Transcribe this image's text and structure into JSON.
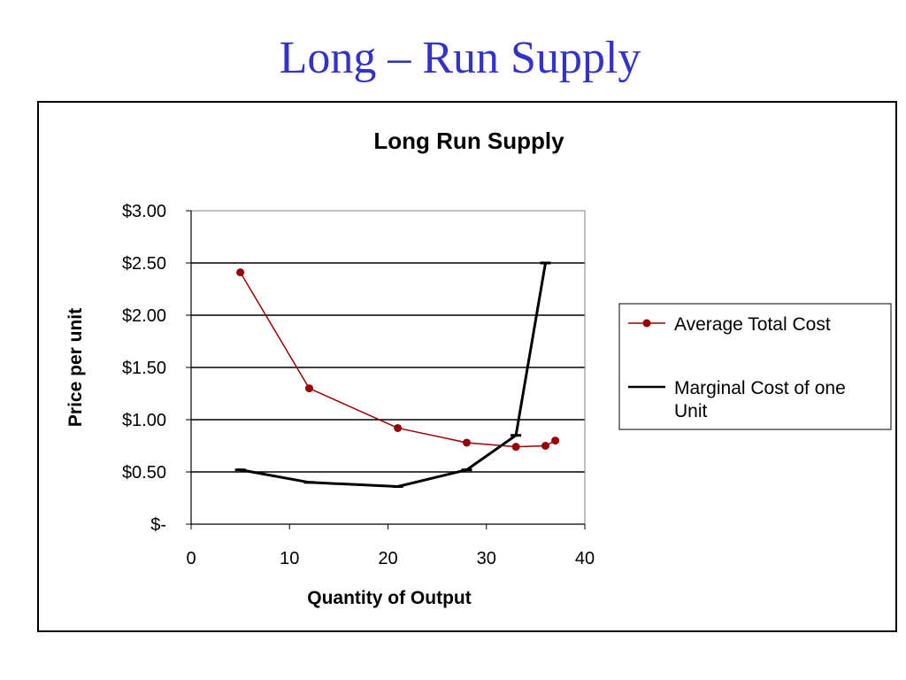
{
  "slide": {
    "title": "Long – Run Supply"
  },
  "chart_data": {
    "type": "line",
    "title": "Long Run Supply",
    "xlabel": "Quantity of Output",
    "ylabel": "Price per unit",
    "xlim": [
      0,
      40
    ],
    "ylim": [
      0,
      3
    ],
    "x_ticks": [
      0,
      10,
      20,
      30,
      40
    ],
    "x_tick_labels": [
      "0",
      "10",
      "20",
      "30",
      "40"
    ],
    "y_ticks": [
      0,
      0.5,
      1,
      1.5,
      2,
      2.5,
      3
    ],
    "y_tick_labels": [
      "$-",
      "$0.50",
      "$1.00",
      "$1.50",
      "$2.00",
      "$2.50",
      "$3.00"
    ],
    "grid": "horizontal",
    "legend_position": "right",
    "series": [
      {
        "name": "Average Total Cost",
        "color": "#990000",
        "marker": "circle",
        "x": [
          5,
          12,
          21,
          28,
          33,
          36,
          37
        ],
        "y": [
          2.41,
          1.3,
          0.92,
          0.78,
          0.74,
          0.75,
          0.8
        ]
      },
      {
        "name": "Marginal Cost of one Unit",
        "color": "#000000",
        "marker": "dash",
        "x": [
          5,
          12,
          21,
          28,
          33,
          36
        ],
        "y": [
          0.52,
          0.4,
          0.36,
          0.52,
          0.85,
          2.5
        ]
      }
    ]
  }
}
